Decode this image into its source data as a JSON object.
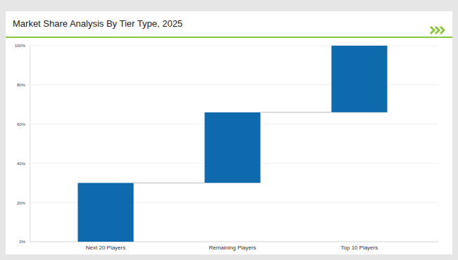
{
  "chart_data": {
    "type": "waterfall",
    "title": "Market Share Analysis By Tier Type, 2025",
    "categories": [
      "Next 20 Players",
      "Remaining Players",
      "Top 10 Players"
    ],
    "values": [
      30,
      36,
      34
    ],
    "color": "#0f69ad",
    "ylim": [
      0,
      100
    ],
    "yticks": [
      {
        "value": 0,
        "label": "0%"
      },
      {
        "value": 20,
        "label": "20%"
      },
      {
        "value": 40,
        "label": "40%"
      },
      {
        "value": 60,
        "label": "60%"
      },
      {
        "value": 80,
        "label": "80%"
      },
      {
        "value": 100,
        "label": "100%"
      }
    ],
    "grid": true
  }
}
